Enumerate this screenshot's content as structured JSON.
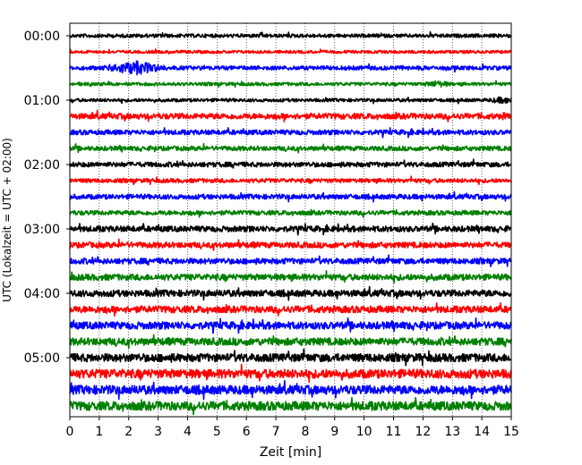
{
  "chart_data": {
    "type": "line",
    "subtype": "helicorder",
    "xlabel": "Zeit  [min]",
    "ylabel": "UTC (Lokalzeit = UTC + 02:00)",
    "x_ticks": [
      0,
      1,
      2,
      3,
      4,
      5,
      6,
      7,
      8,
      9,
      10,
      11,
      12,
      13,
      14,
      15
    ],
    "xlim": [
      0,
      15
    ],
    "y_tick_labels": [
      "00:00",
      "01:00",
      "02:00",
      "03:00",
      "04:00",
      "05:00"
    ],
    "trace_interval_min": 15,
    "grid": "vertical dotted lines at each minute",
    "line_colors": [
      "#000000",
      "#ff0000",
      "#0000ff",
      "#008000"
    ],
    "traces": [
      {
        "start": "00:00",
        "color": "#000000",
        "amplitude": 0.22
      },
      {
        "start": "00:15",
        "color": "#ff0000",
        "amplitude": 0.18
      },
      {
        "start": "00:30",
        "color": "#0000ff",
        "amplitude": 0.25,
        "event": {
          "from": 0.9,
          "to": 3.8,
          "peak": 2.2,
          "amplitude": 0.9
        }
      },
      {
        "start": "00:45",
        "color": "#008000",
        "amplitude": 0.2,
        "event": {
          "from": 11.8,
          "to": 13.4,
          "peak": 12.5,
          "amplitude": 0.45
        }
      },
      {
        "start": "01:00",
        "color": "#000000",
        "amplitude": 0.2,
        "event": {
          "from": 13.8,
          "to": 15,
          "peak": 14.7,
          "amplitude": 0.45
        }
      },
      {
        "start": "01:15",
        "color": "#ff0000",
        "amplitude": 0.35,
        "event": {
          "from": 14.2,
          "to": 15,
          "peak": 14.8,
          "amplitude": 0.5
        }
      },
      {
        "start": "01:30",
        "color": "#0000ff",
        "amplitude": 0.3
      },
      {
        "start": "01:45",
        "color": "#008000",
        "amplitude": 0.28
      },
      {
        "start": "02:00",
        "color": "#000000",
        "amplitude": 0.3
      },
      {
        "start": "02:15",
        "color": "#ff0000",
        "amplitude": 0.25
      },
      {
        "start": "02:30",
        "color": "#0000ff",
        "amplitude": 0.3
      },
      {
        "start": "02:45",
        "color": "#008000",
        "amplitude": 0.28
      },
      {
        "start": "03:00",
        "color": "#000000",
        "amplitude": 0.35
      },
      {
        "start": "03:15",
        "color": "#ff0000",
        "amplitude": 0.35
      },
      {
        "start": "03:30",
        "color": "#0000ff",
        "amplitude": 0.35
      },
      {
        "start": "03:45",
        "color": "#008000",
        "amplitude": 0.38
      },
      {
        "start": "04:00",
        "color": "#000000",
        "amplitude": 0.4
      },
      {
        "start": "04:15",
        "color": "#ff0000",
        "amplitude": 0.42
      },
      {
        "start": "04:30",
        "color": "#0000ff",
        "amplitude": 0.45
      },
      {
        "start": "04:45",
        "color": "#008000",
        "amplitude": 0.45
      },
      {
        "start": "05:00",
        "color": "#000000",
        "amplitude": 0.5
      },
      {
        "start": "05:15",
        "color": "#ff0000",
        "amplitude": 0.55
      },
      {
        "start": "05:30",
        "color": "#0000ff",
        "amplitude": 0.55
      },
      {
        "start": "05:45",
        "color": "#008000",
        "amplitude": 0.55
      }
    ]
  }
}
